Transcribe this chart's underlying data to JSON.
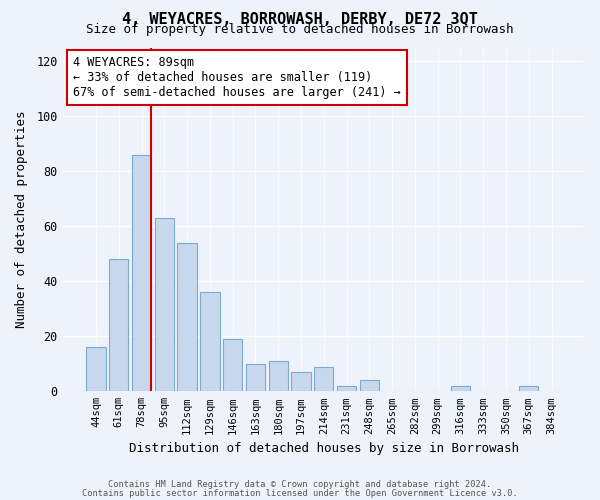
{
  "title": "4, WEYACRES, BORROWASH, DERBY, DE72 3QT",
  "subtitle": "Size of property relative to detached houses in Borrowash",
  "xlabel": "Distribution of detached houses by size in Borrowash",
  "ylabel": "Number of detached properties",
  "bar_color": "#c8d8ec",
  "bar_edge_color": "#7baad0",
  "background_color": "#eef2fb",
  "categories": [
    "44sqm",
    "61sqm",
    "78sqm",
    "95sqm",
    "112sqm",
    "129sqm",
    "146sqm",
    "163sqm",
    "180sqm",
    "197sqm",
    "214sqm",
    "231sqm",
    "248sqm",
    "265sqm",
    "282sqm",
    "299sqm",
    "316sqm",
    "333sqm",
    "350sqm",
    "367sqm",
    "384sqm"
  ],
  "values": [
    16,
    48,
    86,
    63,
    54,
    36,
    19,
    10,
    11,
    7,
    9,
    2,
    4,
    0,
    0,
    0,
    2,
    0,
    0,
    2,
    0
  ],
  "ylim": [
    0,
    125
  ],
  "yticks": [
    0,
    20,
    40,
    60,
    80,
    100,
    120
  ],
  "property_line_color": "#cc0000",
  "property_line_bar_index": 2,
  "annotation_title": "4 WEYACRES: 89sqm",
  "annotation_line1": "← 33% of detached houses are smaller (119)",
  "annotation_line2": "67% of semi-detached houses are larger (241) →",
  "annotation_box_color": "#ffffff",
  "annotation_box_edge_color": "#cc0000",
  "footer_line1": "Contains HM Land Registry data © Crown copyright and database right 2024.",
  "footer_line2": "Contains public sector information licensed under the Open Government Licence v3.0."
}
